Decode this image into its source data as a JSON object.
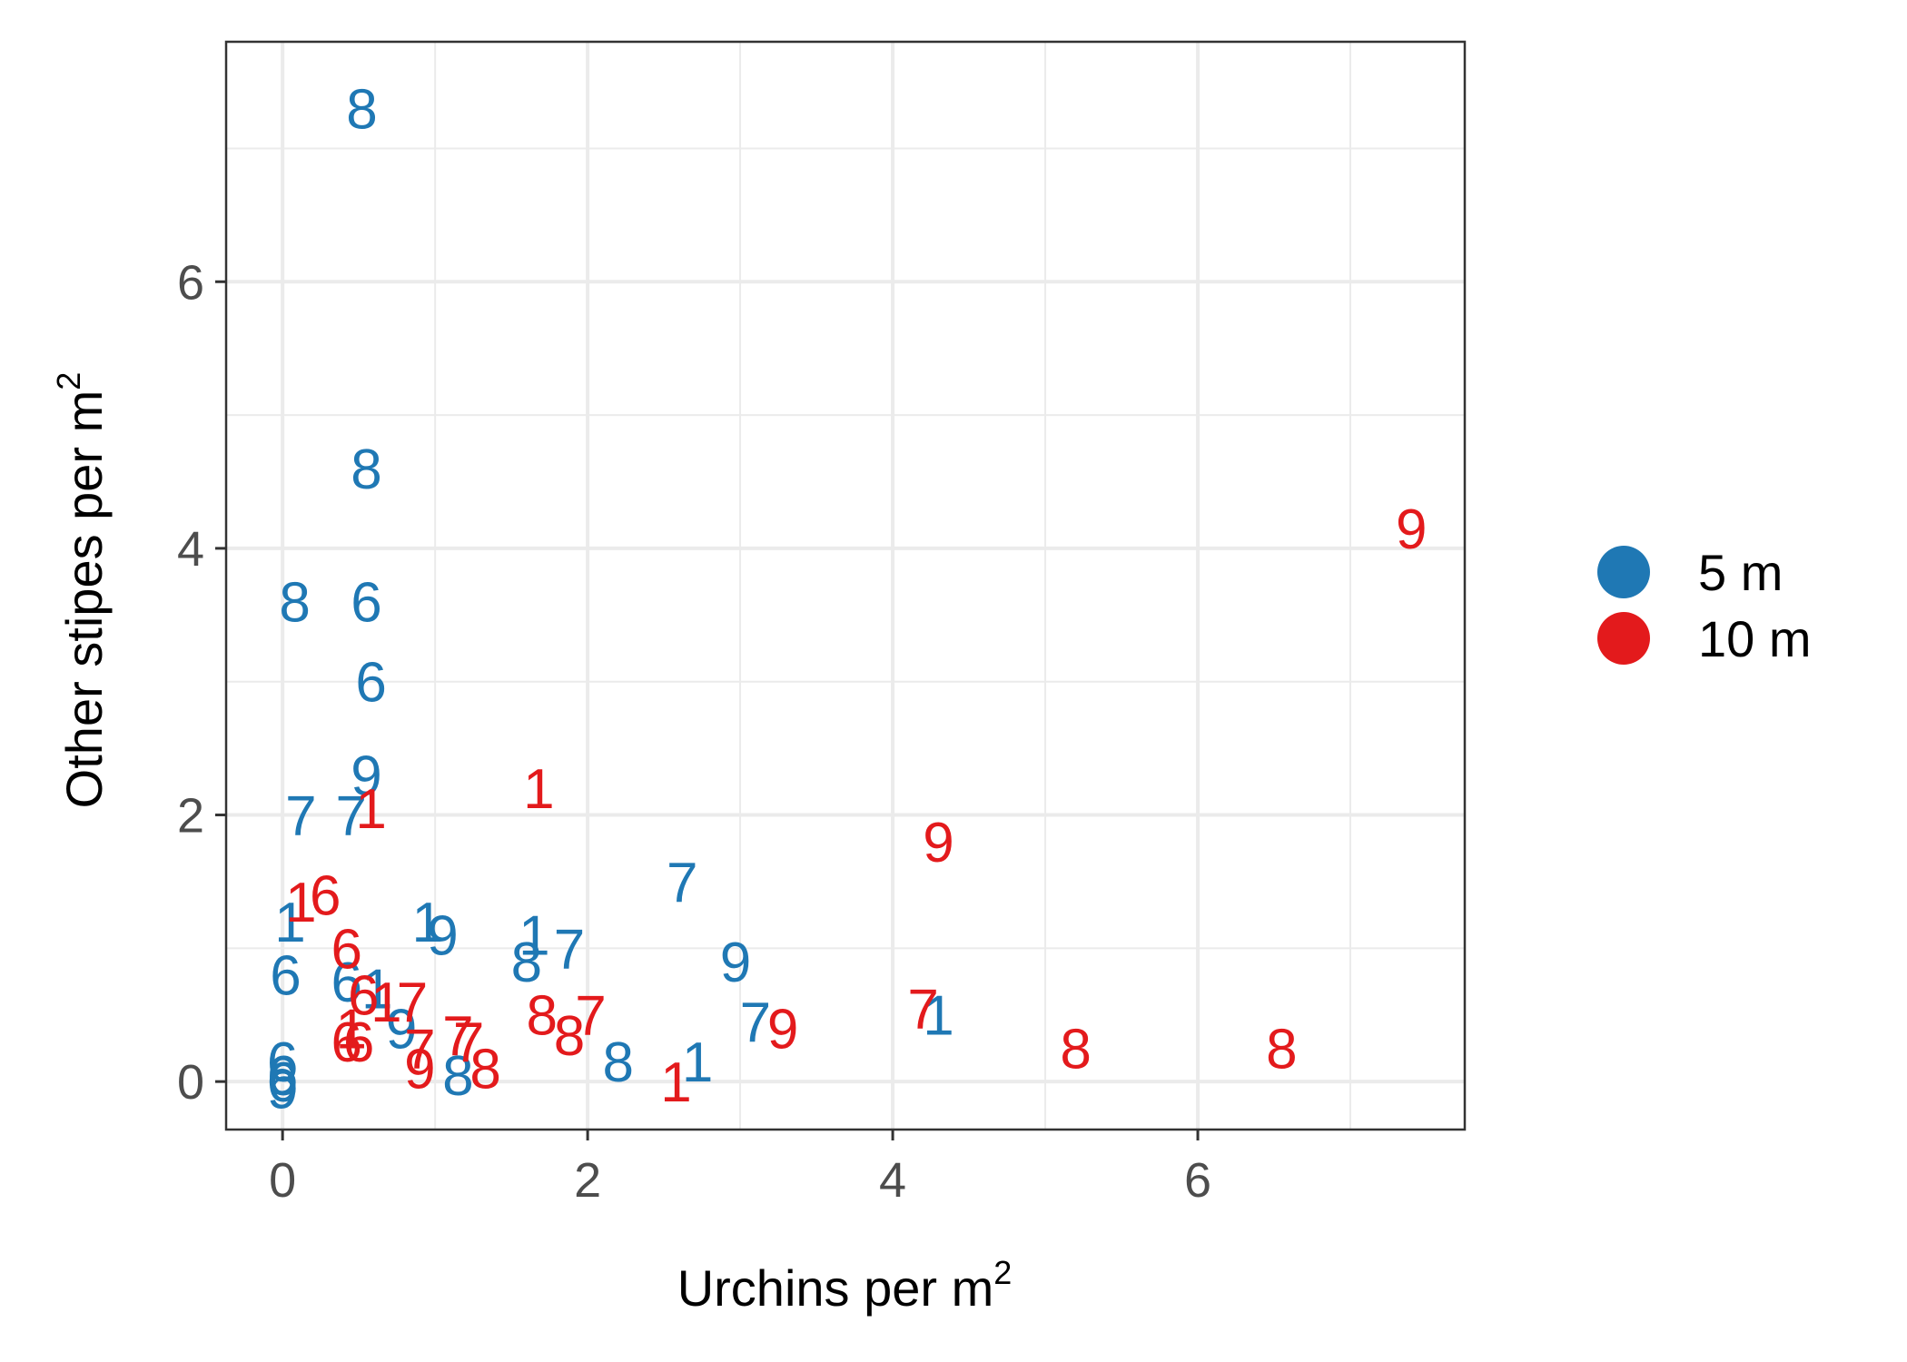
{
  "chart_data": {
    "type": "scatter",
    "title": "",
    "xlabel": {
      "text": "Urchins per m",
      "sup": "2"
    },
    "ylabel": {
      "text": "Other stipes per m",
      "sup": "2"
    },
    "xlim": [
      -0.37,
      7.75
    ],
    "ylim": [
      -0.36,
      7.8
    ],
    "x_ticks": [
      0,
      2,
      4,
      6
    ],
    "y_ticks": [
      0,
      2,
      4,
      6
    ],
    "x_minor": [
      1,
      3,
      5,
      7
    ],
    "y_minor": [
      1,
      3,
      5,
      7
    ],
    "grid": true,
    "legend_position": "right",
    "series": [
      {
        "name": "5 m",
        "color": "#1F78B4",
        "points": [
          {
            "x": 0.52,
            "y": 7.3,
            "label": "8"
          },
          {
            "x": 0.55,
            "y": 4.6,
            "label": "8"
          },
          {
            "x": 0.08,
            "y": 3.6,
            "label": "8"
          },
          {
            "x": 0.55,
            "y": 3.6,
            "label": "6"
          },
          {
            "x": 0.58,
            "y": 3.0,
            "label": "6"
          },
          {
            "x": 0.55,
            "y": 2.3,
            "label": "9"
          },
          {
            "x": 0.12,
            "y": 2.0,
            "label": "7"
          },
          {
            "x": 0.45,
            "y": 2.0,
            "label": "7"
          },
          {
            "x": 2.62,
            "y": 1.5,
            "label": "7"
          },
          {
            "x": 0.05,
            "y": 1.2,
            "label": "1"
          },
          {
            "x": 0.95,
            "y": 1.2,
            "label": "1"
          },
          {
            "x": 1.05,
            "y": 1.1,
            "label": "9"
          },
          {
            "x": 1.65,
            "y": 1.1,
            "label": "1"
          },
          {
            "x": 1.88,
            "y": 1.0,
            "label": "7"
          },
          {
            "x": 1.6,
            "y": 0.9,
            "label": "8"
          },
          {
            "x": 2.97,
            "y": 0.9,
            "label": "9"
          },
          {
            "x": 0.02,
            "y": 0.8,
            "label": "6"
          },
          {
            "x": 0.42,
            "y": 0.75,
            "label": "6"
          },
          {
            "x": 0.62,
            "y": 0.7,
            "label": "1"
          },
          {
            "x": 3.1,
            "y": 0.45,
            "label": "7"
          },
          {
            "x": 4.3,
            "y": 0.5,
            "label": "1"
          },
          {
            "x": 0.78,
            "y": 0.4,
            "label": "9"
          },
          {
            "x": 2.72,
            "y": 0.15,
            "label": "1"
          },
          {
            "x": 2.2,
            "y": 0.15,
            "label": "8"
          },
          {
            "x": 1.15,
            "y": 0.05,
            "label": "8"
          },
          {
            "x": 0.0,
            "y": 0.15,
            "label": "6"
          },
          {
            "x": 0.0,
            "y": 0.05,
            "label": "6"
          },
          {
            "x": 0.0,
            "y": 0.0,
            "label": "6"
          },
          {
            "x": 0.0,
            "y": -0.05,
            "label": "9"
          }
        ]
      },
      {
        "name": "10 m",
        "color": "#E31A1C",
        "points": [
          {
            "x": 7.4,
            "y": 4.15,
            "label": "9"
          },
          {
            "x": 1.68,
            "y": 2.2,
            "label": "1"
          },
          {
            "x": 0.58,
            "y": 2.05,
            "label": "1"
          },
          {
            "x": 4.3,
            "y": 1.8,
            "label": "9"
          },
          {
            "x": 0.12,
            "y": 1.35,
            "label": "1"
          },
          {
            "x": 0.28,
            "y": 1.4,
            "label": "6"
          },
          {
            "x": 0.42,
            "y": 1.0,
            "label": "6"
          },
          {
            "x": 0.53,
            "y": 0.65,
            "label": "6"
          },
          {
            "x": 0.68,
            "y": 0.6,
            "label": "1"
          },
          {
            "x": 0.85,
            "y": 0.6,
            "label": "7"
          },
          {
            "x": 1.7,
            "y": 0.5,
            "label": "8"
          },
          {
            "x": 2.02,
            "y": 0.5,
            "label": "7"
          },
          {
            "x": 4.2,
            "y": 0.55,
            "label": "7"
          },
          {
            "x": 1.88,
            "y": 0.35,
            "label": "8"
          },
          {
            "x": 3.28,
            "y": 0.4,
            "label": "9"
          },
          {
            "x": 1.15,
            "y": 0.35,
            "label": "7"
          },
          {
            "x": 1.22,
            "y": 0.3,
            "label": "7"
          },
          {
            "x": 0.45,
            "y": 0.4,
            "label": "1"
          },
          {
            "x": 0.42,
            "y": 0.3,
            "label": "6"
          },
          {
            "x": 0.5,
            "y": 0.3,
            "label": "6"
          },
          {
            "x": 0.9,
            "y": 0.25,
            "label": "7"
          },
          {
            "x": 0.9,
            "y": 0.1,
            "label": "9"
          },
          {
            "x": 1.33,
            "y": 0.1,
            "label": "8"
          },
          {
            "x": 5.2,
            "y": 0.25,
            "label": "8"
          },
          {
            "x": 6.55,
            "y": 0.25,
            "label": "8"
          },
          {
            "x": 2.58,
            "y": 0.0,
            "label": "1"
          }
        ]
      }
    ]
  }
}
